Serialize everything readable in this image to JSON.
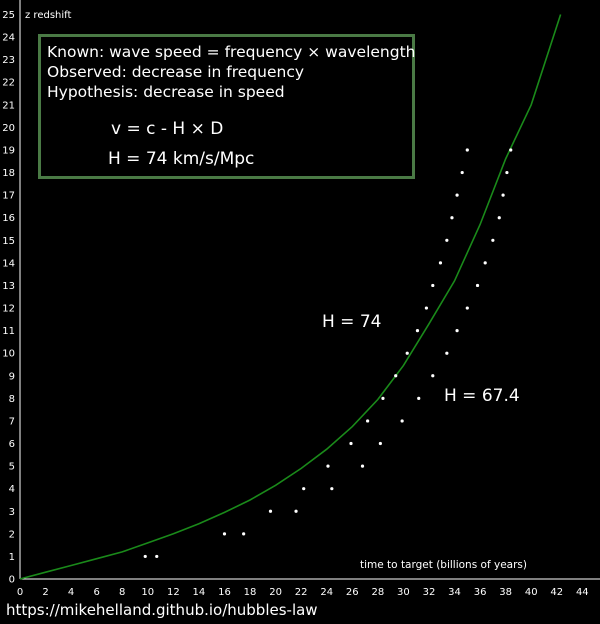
{
  "chart_data": {
    "type": "line",
    "xlabel": "time to target (billions of years)",
    "ylabel": "z redshift",
    "xlim": [
      0,
      45
    ],
    "ylim": [
      0,
      25
    ],
    "x_ticks": [
      0,
      2,
      4,
      6,
      8,
      10,
      12,
      14,
      16,
      18,
      20,
      22,
      24,
      26,
      28,
      30,
      32,
      34,
      36,
      38,
      40,
      42,
      44
    ],
    "y_ticks": [
      0,
      1,
      2,
      3,
      4,
      5,
      6,
      7,
      8,
      9,
      10,
      11,
      12,
      13,
      14,
      15,
      16,
      17,
      18,
      19,
      20,
      21,
      22,
      23,
      24,
      25
    ],
    "grid": false,
    "annotations": {
      "h74": "H = 74",
      "h674": "H = 67.4"
    },
    "series": [
      {
        "kind": "curve",
        "color": "#1a8a1a",
        "x": [
          0,
          2,
          4,
          6,
          8,
          10,
          12,
          14,
          16,
          18,
          20,
          22,
          24,
          26,
          28,
          30,
          32,
          34,
          36,
          38,
          40,
          42.3
        ],
        "y": [
          0,
          0.3,
          0.6,
          0.9,
          1.2,
          1.6,
          2.0,
          2.45,
          2.95,
          3.5,
          4.15,
          4.9,
          5.75,
          6.75,
          7.95,
          9.45,
          11.3,
          13.2,
          15.7,
          18.6,
          21.0,
          25.0
        ]
      },
      {
        "kind": "dots",
        "color": "#ffffff",
        "x": [
          9.8,
          17.5,
          21.6,
          24.4,
          26.8,
          28.2,
          29.9,
          31.2,
          32.3,
          33.4,
          34.2,
          35.0,
          35.8,
          36.4,
          37.0,
          37.5,
          37.8,
          38.1,
          38.4
        ],
        "y": [
          1,
          2,
          3,
          4,
          5,
          6,
          7,
          8,
          9,
          10,
          11,
          12,
          13,
          14,
          15,
          16,
          17,
          18,
          19
        ]
      },
      {
        "kind": "dots",
        "color": "#ffffff",
        "x": [
          10.7,
          16.0,
          19.6,
          22.2,
          24.1,
          25.9,
          27.2,
          28.4,
          29.4,
          30.3,
          31.1,
          31.8,
          32.3,
          32.9,
          33.4,
          33.8,
          34.2,
          34.6,
          35.0
        ],
        "y": [
          1,
          2,
          3,
          4,
          5,
          6,
          7,
          8,
          9,
          10,
          11,
          12,
          13,
          14,
          15,
          16,
          17,
          18,
          19
        ]
      }
    ]
  },
  "infobox": {
    "line1": "Known: wave speed = frequency × wavelength",
    "line2": "Observed: decrease in frequency",
    "line3": "Hypothesis: decrease in speed",
    "eq1": "v = c - H × D",
    "eq2": "H = 74 km/s/Mpc"
  },
  "footer": "https://mikehelland.github.io/hubbles-law"
}
